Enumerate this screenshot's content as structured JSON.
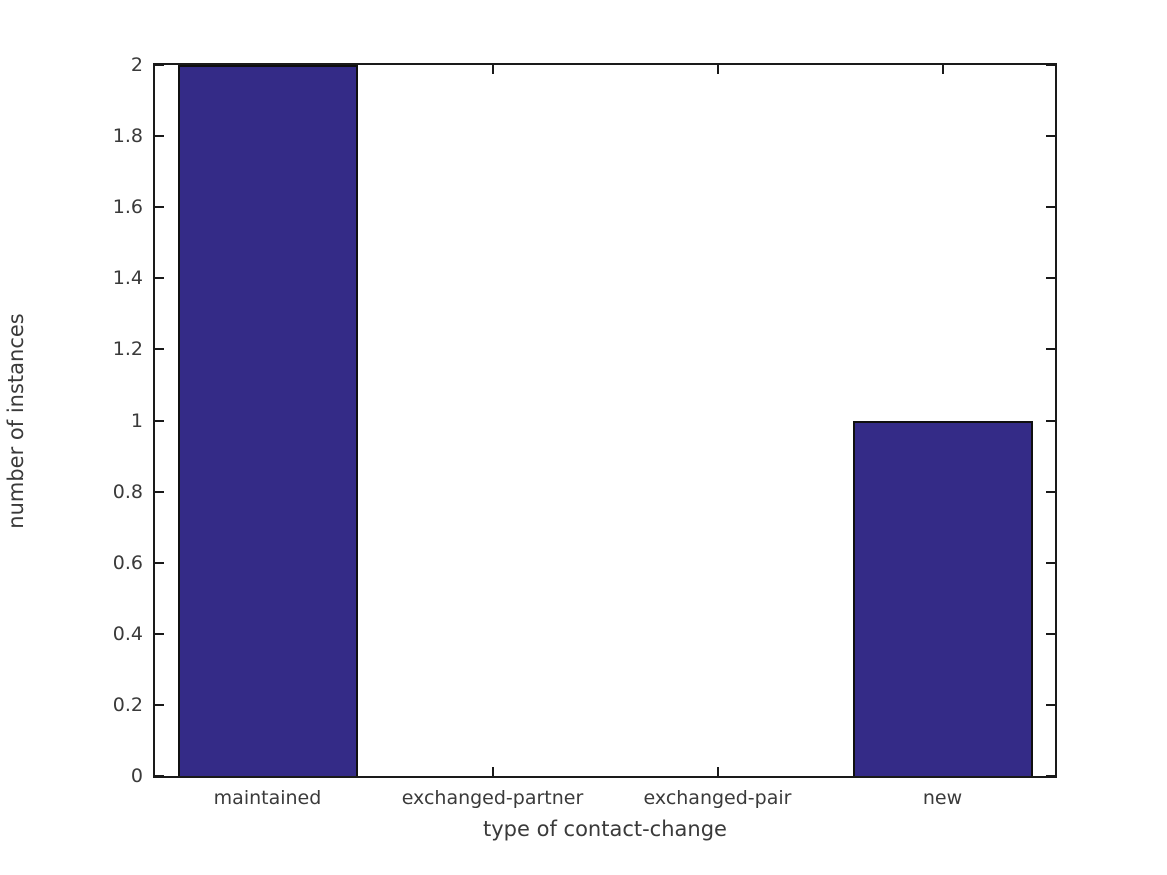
{
  "chart_data": {
    "type": "bar",
    "title": "",
    "categories": [
      "maintained",
      "exchanged-partner",
      "exchanged-pair",
      "new"
    ],
    "values": [
      2,
      0,
      0,
      1
    ],
    "xlabel": "type of contact-change",
    "ylabel": "number of instances",
    "ylim": [
      0,
      2
    ],
    "yticks": [
      0,
      0.2,
      0.4,
      0.6,
      0.8,
      1,
      1.2,
      1.4,
      1.6,
      1.8,
      2
    ],
    "ytick_labels": [
      "0",
      "0.2",
      "0.4",
      "0.6",
      "0.8",
      "1",
      "1.2",
      "1.4",
      "1.6",
      "1.8",
      "2"
    ],
    "grid": false,
    "legend": false,
    "layout_hints": {
      "tick_direction": "in",
      "ticks_mirrored_all_sides": true,
      "bar_relative_width": 0.8
    },
    "colors": {
      "bar_fill": "#342b87",
      "bar_edge": "#101010",
      "axis": "#1a1a1a",
      "text": "#3a3a3a",
      "background": "#ffffff"
    }
  }
}
